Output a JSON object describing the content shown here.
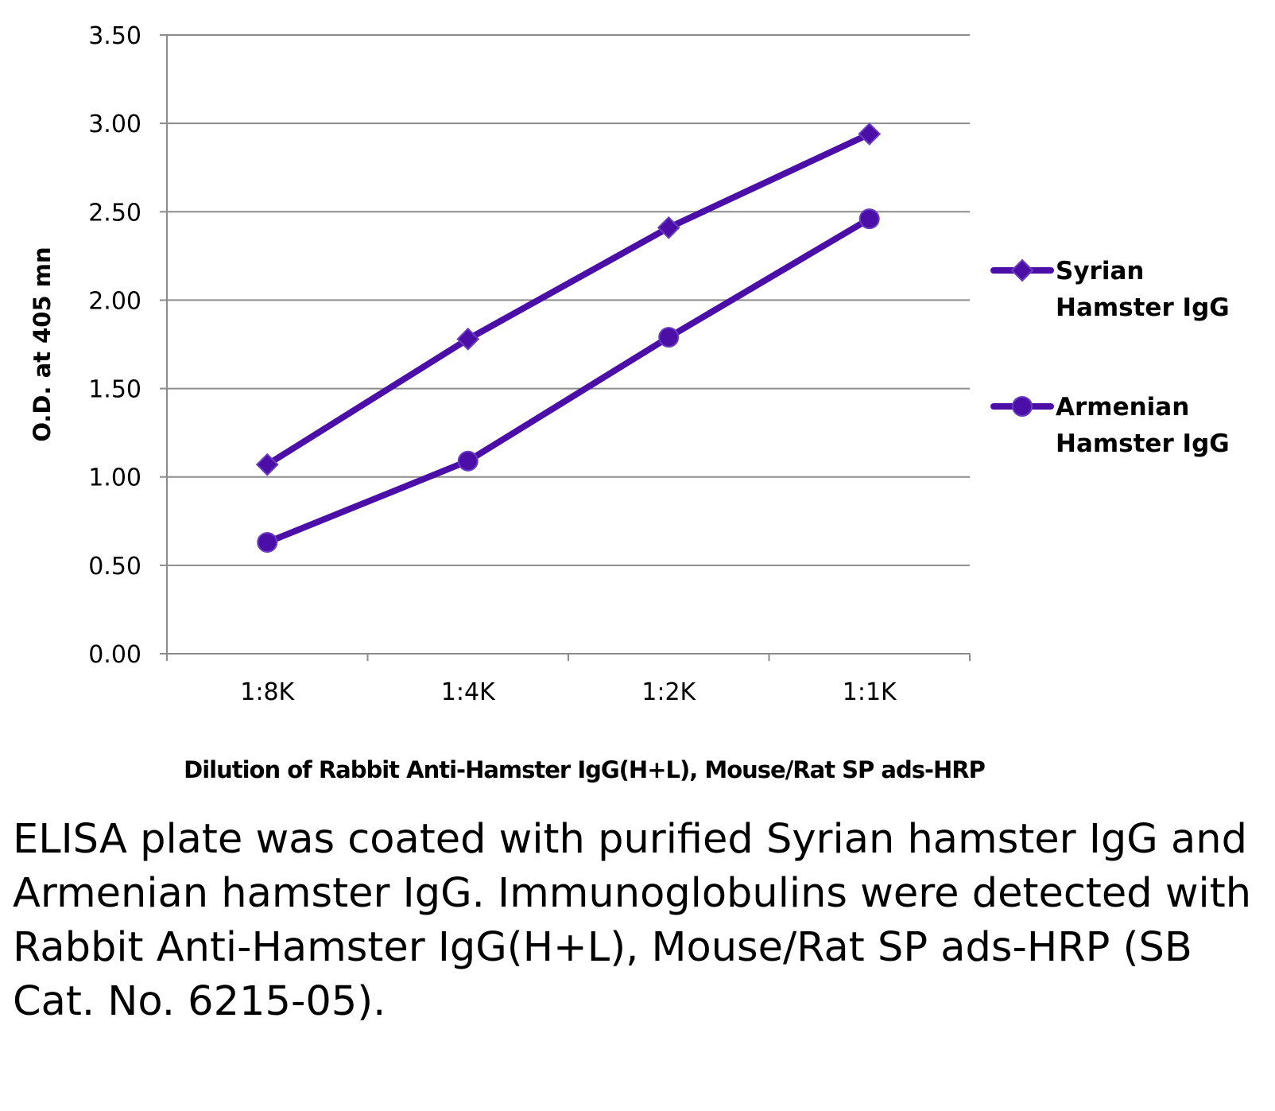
{
  "chart_data": {
    "type": "line",
    "title": "",
    "xlabel": "Dilution of Rabbit Anti-Hamster IgG(H+L), Mouse/Rat SP ads-HRP",
    "ylabel": "O.D. at 405 mn",
    "categories": [
      "1:8K",
      "1:4K",
      "1:2K",
      "1:1K"
    ],
    "ylim": [
      0,
      3.5
    ],
    "yticks": [
      "0.00",
      "0.50",
      "1.00",
      "1.50",
      "2.00",
      "2.50",
      "3.00",
      "3.50"
    ],
    "grid": true,
    "legend_position": "right",
    "series": [
      {
        "name": "Syrian Hamster IgG",
        "name_lines": [
          "Syrian",
          "Hamster IgG"
        ],
        "marker": "diamond",
        "color": "#4b0fa8",
        "values": [
          1.07,
          1.78,
          2.41,
          2.94
        ]
      },
      {
        "name": "Armenian Hamster IgG",
        "name_lines": [
          "Armenian",
          "Hamster IgG"
        ],
        "marker": "circle",
        "color": "#4b0fa8",
        "values": [
          0.63,
          1.09,
          1.79,
          2.46
        ]
      }
    ]
  },
  "caption": "ELISA plate was coated with purified Syrian hamster IgG and Armenian hamster IgG. Immunoglobulins were detected with Rabbit Anti-Hamster IgG(H+L), Mouse/Rat SP ads-HRP (SB Cat. No. 6215-05)."
}
